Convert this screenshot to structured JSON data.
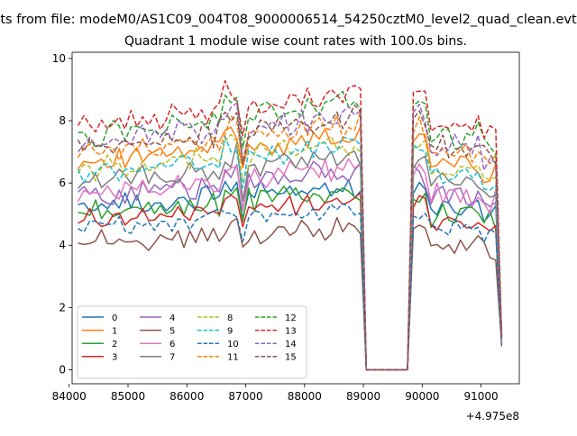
{
  "figure": {
    "suptitle": "ts from file: modeM0/AS1C09_004T08_9000006514_54250cztM0_level2_quad_clean.evt",
    "title": "Quadrant 1 module wise count rates with 100.0s bins."
  },
  "chart_data": {
    "type": "line",
    "title": "Quadrant 1 module wise count rates with 100.0s bins.",
    "xlabel": "",
    "ylabel": "",
    "x_offset_label": "+4.975e8",
    "xlim": [
      84050,
      91650
    ],
    "ylim": [
      -0.45,
      10.2
    ],
    "xticks": [
      84000,
      85000,
      86000,
      87000,
      88000,
      89000,
      90000,
      91000
    ],
    "xtick_labels": [
      "84000",
      "85000",
      "86000",
      "87000",
      "88000",
      "89000",
      "90000",
      "91000"
    ],
    "yticks": [
      0,
      2,
      4,
      6,
      8,
      10
    ],
    "ytick_labels": [
      "0",
      "2",
      "4",
      "6",
      "8",
      "10"
    ],
    "grid": false,
    "legend_placement": "lower-left",
    "legend_columns": 4,
    "x_segments": [
      {
        "start": 84150,
        "end": 88950,
        "step": 100
      },
      {
        "start": 89050,
        "end": 89750,
        "step": 100
      },
      {
        "start": 89850,
        "end": 91350,
        "step": 100
      }
    ],
    "gap_value": 0,
    "series": [
      {
        "name": "0",
        "color": "#1f77b4",
        "dash": "solid",
        "base": 5.2,
        "amp": 0.28,
        "seed": 1,
        "end": 0.75
      },
      {
        "name": "1",
        "color": "#ff7f0e",
        "dash": "solid",
        "base": 6.6,
        "amp": 0.3,
        "seed": 2,
        "end": 1.05
      },
      {
        "name": "2",
        "color": "#2ca02c",
        "dash": "solid",
        "base": 5.0,
        "amp": 0.3,
        "seed": 3,
        "end": 1.0
      },
      {
        "name": "3",
        "color": "#d62728",
        "dash": "solid",
        "base": 4.8,
        "amp": 0.25,
        "seed": 4,
        "end": 0.9
      },
      {
        "name": "4",
        "color": "#9467bd",
        "dash": "solid",
        "base": 5.6,
        "amp": 0.3,
        "seed": 5,
        "end": 0.95
      },
      {
        "name": "5",
        "color": "#8c564b",
        "dash": "solid",
        "base": 4.0,
        "amp": 0.3,
        "seed": 6,
        "end": 0.8
      },
      {
        "name": "6",
        "color": "#e377c2",
        "dash": "solid",
        "base": 5.7,
        "amp": 0.3,
        "seed": 7,
        "end": 0.9
      },
      {
        "name": "7",
        "color": "#7f7f7f",
        "dash": "solid",
        "base": 6.0,
        "amp": 0.32,
        "seed": 8,
        "end": 1.0
      },
      {
        "name": "8",
        "color": "#bcbd22",
        "dash": "dashed",
        "base": 6.4,
        "amp": 0.28,
        "seed": 9,
        "end": 1.0
      },
      {
        "name": "9",
        "color": "#17becf",
        "dash": "dashed",
        "base": 6.3,
        "amp": 0.28,
        "seed": 10,
        "end": 1.0
      },
      {
        "name": "10",
        "color": "#1f77b4",
        "dash": "dashed",
        "base": 4.5,
        "amp": 0.25,
        "seed": 11,
        "end": 0.85
      },
      {
        "name": "11",
        "color": "#ff7f0e",
        "dash": "dashed",
        "base": 6.9,
        "amp": 0.3,
        "seed": 12,
        "end": 1.05
      },
      {
        "name": "12",
        "color": "#2ca02c",
        "dash": "dashed",
        "base": 7.5,
        "amp": 0.3,
        "seed": 13,
        "end": 1.1
      },
      {
        "name": "13",
        "color": "#d62728",
        "dash": "dashed",
        "base": 7.8,
        "amp": 0.3,
        "seed": 14,
        "end": 1.15
      },
      {
        "name": "14",
        "color": "#9467bd",
        "dash": "dashed",
        "base": 7.2,
        "amp": 0.32,
        "seed": 15,
        "end": 1.1
      },
      {
        "name": "15",
        "color": "#8c564b",
        "dash": "dashed",
        "base": 7.1,
        "amp": 0.3,
        "seed": 16,
        "end": 1.05
      }
    ]
  }
}
